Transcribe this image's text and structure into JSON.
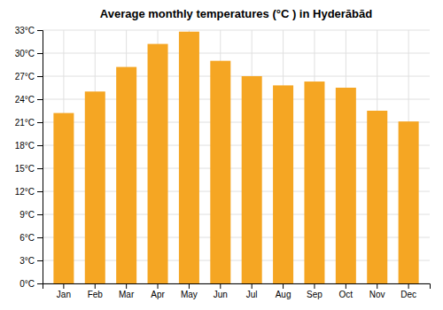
{
  "chart_data": {
    "type": "bar",
    "title": "Average monthly temperatures (°C ) in Hyderābād",
    "categories": [
      "Jan",
      "Feb",
      "Mar",
      "Apr",
      "May",
      "Jun",
      "Jul",
      "Aug",
      "Sep",
      "Oct",
      "Nov",
      "Dec"
    ],
    "values": [
      22.2,
      25.0,
      28.2,
      31.2,
      32.8,
      29.0,
      27.0,
      25.8,
      26.3,
      25.5,
      22.5,
      21.1
    ],
    "color": "#F5A623",
    "ylim": [
      0,
      33
    ],
    "yticks": [
      {
        "value": 0,
        "label": "0°C"
      },
      {
        "value": 3,
        "label": "3°C"
      },
      {
        "value": 6,
        "label": "6°C"
      },
      {
        "value": 9,
        "label": "9°C"
      },
      {
        "value": 12,
        "label": "12°C"
      },
      {
        "value": 15,
        "label": "15°C"
      },
      {
        "value": 18,
        "label": "18°C"
      },
      {
        "value": 21,
        "label": "21°C"
      },
      {
        "value": 24,
        "label": "24°C"
      },
      {
        "value": 27,
        "label": "27°C"
      },
      {
        "value": 30,
        "label": "30°C"
      },
      {
        "value": 33,
        "label": "33°C"
      }
    ],
    "grid": true
  }
}
